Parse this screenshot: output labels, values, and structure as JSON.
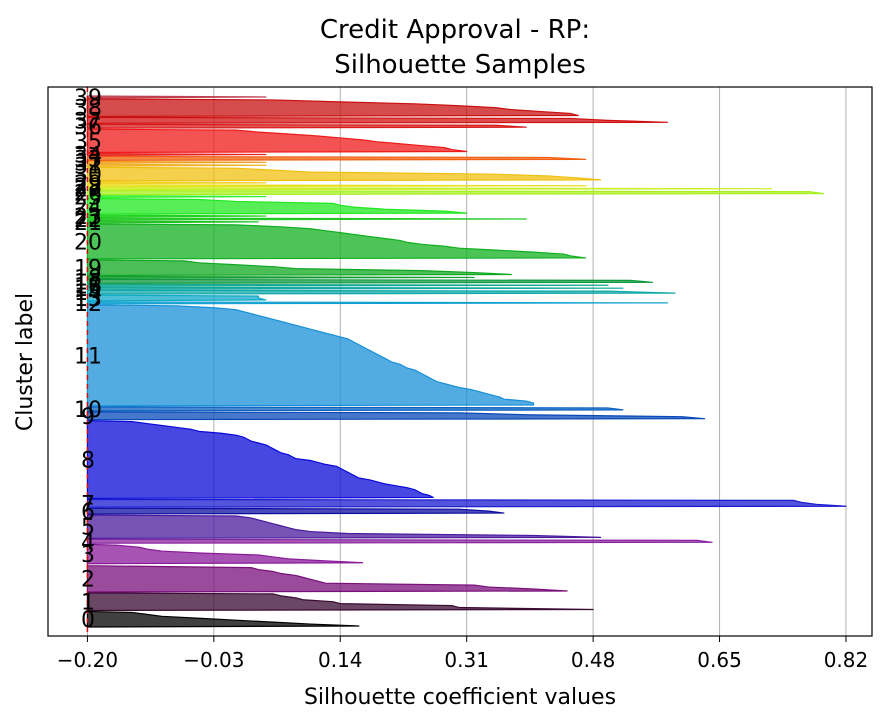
{
  "chart_data": {
    "type": "silhouette",
    "title": [
      "Credit Approval - RP:",
      "Silhouette Samples"
    ],
    "xlabel": "Silhouette coefficient values",
    "ylabel": "Cluster label",
    "xlim": [
      -0.253,
      0.855
    ],
    "xticks": [
      -0.2,
      -0.03,
      0.14,
      0.31,
      0.48,
      0.65,
      0.82
    ],
    "xtick_labels": [
      "−0.20",
      "−0.03",
      "0.14",
      "0.31",
      "0.48",
      "0.65",
      "0.82"
    ],
    "grid": "vertical",
    "reference_value": -0.2,
    "clusters": [
      {
        "label": "0",
        "size": 8,
        "profile": [
          0.165,
          0.1,
          0.05,
          0.0,
          -0.05,
          -0.1,
          -0.12,
          -0.14
        ],
        "color": "#000000"
      },
      {
        "label": "1",
        "size": 9,
        "profile": [
          0.48,
          0.3,
          0.29,
          0.14,
          0.13,
          0.09,
          0.08,
          0.06,
          0.05
        ],
        "color": "#3a0a33"
      },
      {
        "label": "2",
        "size": 14,
        "profile": [
          0.445,
          0.4,
          0.34,
          0.32,
          0.12,
          0.11,
          0.1,
          0.09,
          0.08,
          0.06,
          0.05,
          0.03,
          0.02,
          -0.2
        ],
        "color": "#7a0f7a"
      },
      {
        "label": "3",
        "size": 10,
        "profile": [
          0.17,
          0.12,
          0.07,
          0.05,
          0.03,
          -0.05,
          -0.1,
          -0.12,
          -0.13,
          -0.16
        ],
        "color": "#8a1a9a"
      },
      {
        "label": "4",
        "size": 2,
        "profile": [
          0.64,
          0.62
        ],
        "color": "#8a25a0"
      },
      {
        "label": "5",
        "size": 12,
        "profile": [
          0.49,
          0.4,
          0.15,
          0.1,
          0.08,
          0.07,
          0.06,
          0.05,
          0.04,
          0.03,
          0.02,
          0.0
        ],
        "color": "#4a1a9e"
      },
      {
        "label": "6",
        "size": 3,
        "profile": [
          0.36,
          0.34,
          0.3
        ],
        "color": "#0d0da0"
      },
      {
        "label": "7",
        "size": 4,
        "profile": [
          0.82,
          0.78,
          0.76,
          0.75
        ],
        "color": "#1a1ad0"
      },
      {
        "label": "8",
        "size": 40,
        "profile": [
          0.265,
          0.26,
          0.25,
          0.245,
          0.24,
          0.23,
          0.215,
          0.2,
          0.19,
          0.18,
          0.165,
          0.16,
          0.155,
          0.15,
          0.145,
          0.14,
          0.135,
          0.12,
          0.11,
          0.1,
          0.08,
          0.075,
          0.07,
          0.06,
          0.055,
          0.05,
          0.045,
          0.04,
          0.03,
          0.02,
          0.015,
          0.01,
          0.0,
          -0.02,
          -0.05,
          -0.06,
          -0.08,
          -0.1,
          -0.12,
          -0.14
        ],
        "color": "#0a0ad8"
      },
      {
        "label": "9",
        "size": 4,
        "profile": [
          0.63,
          0.6,
          0.39,
          0.3
        ],
        "color": "#0a4ab8"
      },
      {
        "label": "10",
        "size": 2,
        "profile": [
          0.52,
          0.5
        ],
        "color": "#0a60c0"
      },
      {
        "label": "11",
        "size": 52,
        "profile": [
          0.4,
          0.4,
          0.39,
          0.36,
          0.355,
          0.345,
          0.335,
          0.325,
          0.315,
          0.3,
          0.29,
          0.28,
          0.27,
          0.265,
          0.26,
          0.255,
          0.25,
          0.245,
          0.24,
          0.23,
          0.225,
          0.22,
          0.21,
          0.205,
          0.2,
          0.195,
          0.19,
          0.185,
          0.18,
          0.175,
          0.17,
          0.165,
          0.16,
          0.155,
          0.15,
          0.14,
          0.13,
          0.12,
          0.11,
          0.1,
          0.09,
          0.08,
          0.07,
          0.06,
          0.05,
          0.04,
          0.03,
          0.02,
          0.01,
          0.0,
          -0.03,
          -0.08
        ],
        "color": "#1890d8"
      },
      {
        "label": "12",
        "size": 1,
        "profile": [
          0.58
        ],
        "color": "#10a0d0"
      },
      {
        "label": "13",
        "size": 3,
        "profile": [
          0.04,
          0.03,
          0.03
        ],
        "color": "#10a8c8"
      },
      {
        "label": "14",
        "size": 2,
        "profile": [
          0.59,
          0.5
        ],
        "color": "#10a8a8"
      },
      {
        "label": "15",
        "size": 1,
        "profile": [
          0.52
        ],
        "color": "#10a8a0"
      },
      {
        "label": "16",
        "size": 1,
        "profile": [
          0.5
        ],
        "color": "#10a890"
      },
      {
        "label": "17",
        "size": 2,
        "profile": [
          0.56,
          0.53
        ],
        "color": "#109a40"
      },
      {
        "label": "18",
        "size": 1,
        "profile": [
          0.32
        ],
        "color": "#109a30"
      },
      {
        "label": "19",
        "size": 8,
        "profile": [
          0.37,
          0.32,
          0.25,
          0.08,
          0.05,
          0.0,
          -0.05,
          -0.07
        ],
        "color": "#10a820"
      },
      {
        "label": "20",
        "size": 18,
        "profile": [
          0.47,
          0.45,
          0.44,
          0.4,
          0.35,
          0.3,
          0.28,
          0.25,
          0.23,
          0.22,
          0.2,
          0.18,
          0.16,
          0.14,
          0.12,
          0.1,
          0.06,
          0.0
        ],
        "color": "#10b020"
      },
      {
        "label": "21",
        "size": 1,
        "profile": [
          0.03
        ],
        "color": "#20c020"
      },
      {
        "label": "22",
        "size": 1,
        "profile": [
          0.39
        ],
        "color": "#20c820"
      },
      {
        "label": "23",
        "size": 1,
        "profile": [
          0.04
        ],
        "color": "#20d020"
      },
      {
        "label": "24",
        "size": 8,
        "profile": [
          0.31,
          0.28,
          0.2,
          0.16,
          0.14,
          0.13,
          0.0,
          -0.05
        ],
        "color": "#20e820"
      },
      {
        "label": "25",
        "size": 1,
        "profile": [
          0.04
        ],
        "color": "#30f030"
      },
      {
        "label": "26",
        "size": 2,
        "profile": [
          0.79,
          0.77
        ],
        "color": "#a8f020"
      },
      {
        "label": "27",
        "size": 1,
        "profile": [
          0.72
        ],
        "color": "#c8f020"
      },
      {
        "label": "28",
        "size": 1,
        "profile": [
          0.47
        ],
        "color": "#e8e020"
      },
      {
        "label": "29",
        "size": 1,
        "profile": [
          0.04
        ],
        "color": "#f0d020"
      },
      {
        "label": "30",
        "size": 7,
        "profile": [
          0.49,
          0.46,
          0.42,
          0.34,
          0.1,
          0.05,
          0.0
        ],
        "color": "#f0c010"
      },
      {
        "label": "31",
        "size": 1,
        "profile": [
          0.04
        ],
        "color": "#f0b020"
      },
      {
        "label": "32",
        "size": 1,
        "profile": [
          0.04
        ],
        "color": "#f0a020"
      },
      {
        "label": "33",
        "size": 2,
        "profile": [
          0.47,
          0.42
        ],
        "color": "#f06010"
      },
      {
        "label": "34",
        "size": 1,
        "profile": [
          0.04
        ],
        "color": "#e82020"
      },
      {
        "label": "35",
        "size": 12,
        "profile": [
          0.31,
          0.29,
          0.28,
          0.25,
          0.22,
          0.19,
          0.17,
          0.14,
          0.11,
          0.07,
          0.03,
          0.0
        ],
        "color": "#f01a1a"
      },
      {
        "label": "36",
        "size": 2,
        "profile": [
          0.39,
          0.35
        ],
        "color": "#d81a1a"
      },
      {
        "label": "37",
        "size": 3,
        "profile": [
          0.58,
          0.5,
          0.45
        ],
        "color": "#d01010"
      },
      {
        "label": "38",
        "size": 9,
        "profile": [
          0.46,
          0.45,
          0.41,
          0.37,
          0.35,
          0.3,
          0.24,
          0.14,
          0.05
        ],
        "color": "#c81010"
      },
      {
        "label": "39",
        "size": 1,
        "profile": [
          0.04
        ],
        "color": "#c04050"
      }
    ]
  }
}
